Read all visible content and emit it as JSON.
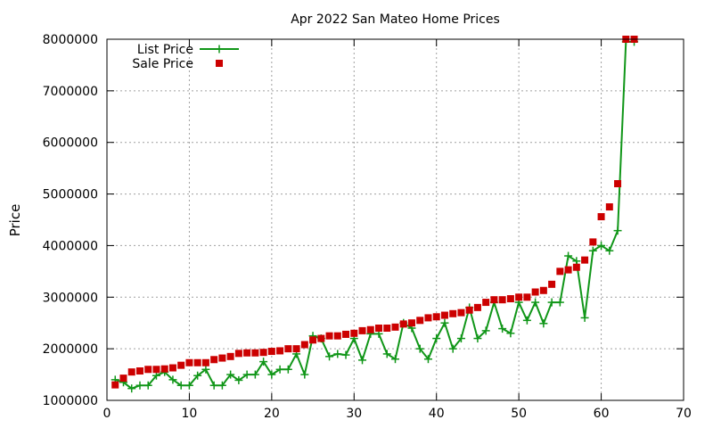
{
  "chart_data": {
    "type": "line",
    "title": "Apr 2022 San Mateo Home Prices",
    "xlabel": "",
    "ylabel": "Price",
    "xlim": [
      0,
      70
    ],
    "ylim": [
      1000000,
      8000000
    ],
    "xticks": [
      0,
      10,
      20,
      30,
      40,
      50,
      60,
      70
    ],
    "yticks": [
      1000000,
      2000000,
      3000000,
      4000000,
      5000000,
      6000000,
      7000000,
      8000000
    ],
    "xtick_labels": [
      "0",
      "10",
      "20",
      "30",
      "40",
      "50",
      "60",
      "70"
    ],
    "ytick_labels": [
      "1000000",
      "2000000",
      "3000000",
      "4000000",
      "5000000",
      "6000000",
      "7000000",
      "8000000"
    ],
    "grid": true,
    "legend_position": "top-left",
    "series": [
      {
        "name": "List Price",
        "style": "line-with-plus-markers",
        "color": "#109618",
        "x": [
          1,
          2,
          3,
          4,
          5,
          6,
          7,
          8,
          9,
          10,
          11,
          12,
          13,
          14,
          15,
          16,
          17,
          18,
          19,
          20,
          21,
          22,
          23,
          24,
          25,
          26,
          27,
          28,
          29,
          30,
          31,
          32,
          33,
          34,
          35,
          36,
          37,
          38,
          39,
          40,
          41,
          42,
          43,
          44,
          45,
          46,
          47,
          48,
          49,
          50,
          51,
          52,
          53,
          54,
          55,
          56,
          57,
          58,
          59,
          60,
          61,
          62,
          63,
          64
        ],
        "values": [
          1400000,
          1350000,
          1230000,
          1290000,
          1290000,
          1480000,
          1550000,
          1400000,
          1290000,
          1290000,
          1480000,
          1600000,
          1290000,
          1290000,
          1500000,
          1390000,
          1500000,
          1500000,
          1750000,
          1500000,
          1600000,
          1600000,
          1900000,
          1500000,
          2250000,
          2200000,
          1850000,
          1900000,
          1880000,
          2200000,
          1780000,
          2290000,
          2290000,
          1900000,
          1800000,
          2500000,
          2400000,
          2000000,
          1800000,
          2200000,
          2500000,
          2000000,
          2200000,
          2800000,
          2200000,
          2350000,
          2900000,
          2390000,
          2300000,
          2900000,
          2550000,
          2900000,
          2490000,
          2900000,
          2900000,
          3800000,
          3700000,
          2600000,
          3900000,
          4000000,
          3900000,
          4290000,
          7950000,
          7950000
        ]
      },
      {
        "name": "Sale Price",
        "style": "square-markers",
        "color": "#cc0000",
        "x": [
          1,
          2,
          3,
          4,
          5,
          6,
          7,
          8,
          9,
          10,
          11,
          12,
          13,
          14,
          15,
          16,
          17,
          18,
          19,
          20,
          21,
          22,
          23,
          24,
          25,
          26,
          27,
          28,
          29,
          30,
          31,
          32,
          33,
          34,
          35,
          36,
          37,
          38,
          39,
          40,
          41,
          42,
          43,
          44,
          45,
          46,
          47,
          48,
          49,
          50,
          51,
          52,
          53,
          54,
          55,
          56,
          57,
          58,
          59,
          60,
          61,
          62,
          63,
          64
        ],
        "values": [
          1300000,
          1430000,
          1550000,
          1570000,
          1600000,
          1600000,
          1610000,
          1630000,
          1680000,
          1730000,
          1730000,
          1730000,
          1790000,
          1820000,
          1850000,
          1910000,
          1920000,
          1920000,
          1930000,
          1950000,
          1960000,
          2000000,
          2000000,
          2080000,
          2170000,
          2200000,
          2250000,
          2250000,
          2280000,
          2300000,
          2350000,
          2370000,
          2400000,
          2400000,
          2420000,
          2480000,
          2500000,
          2550000,
          2600000,
          2620000,
          2650000,
          2680000,
          2700000,
          2750000,
          2800000,
          2900000,
          2950000,
          2950000,
          2970000,
          3000000,
          3000000,
          3100000,
          3130000,
          3250000,
          3500000,
          3530000,
          3580000,
          3720000,
          4070000,
          4560000,
          4750000,
          5200000,
          8000000,
          8000000
        ]
      }
    ]
  }
}
